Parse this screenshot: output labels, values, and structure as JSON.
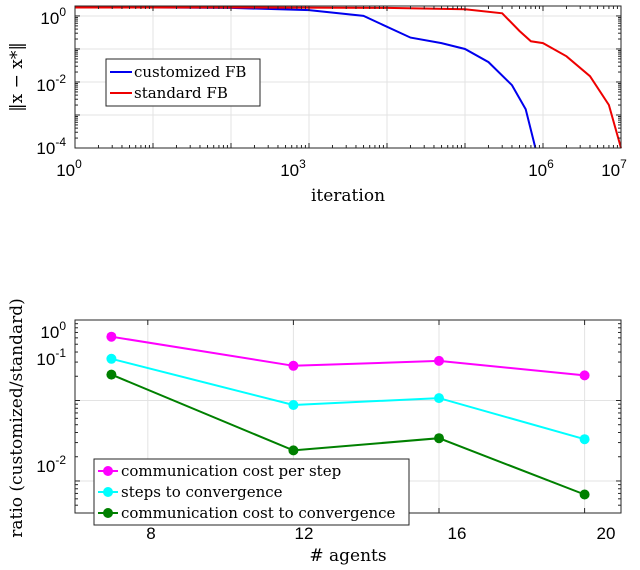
{
  "chart_data": [
    {
      "type": "line",
      "xscale": "log",
      "yscale": "log",
      "xlim": [
        1,
        10000000
      ],
      "ylim": [
        0.0001,
        2
      ],
      "x_ticks": [
        {
          "base": "10",
          "exp": "0"
        },
        {
          "base": "10",
          "exp": "3"
        },
        {
          "base": "10",
          "exp": "6"
        },
        {
          "base": "10",
          "exp": "7"
        }
      ],
      "y_ticks": [
        {
          "base": "10",
          "exp": "0"
        },
        {
          "base": "10",
          "exp": "-2"
        },
        {
          "base": "10",
          "exp": "-4"
        }
      ],
      "xlabel": "iteration",
      "ylabel": "‖x − x*‖",
      "grid": true,
      "legend_position": "middle-left",
      "series": [
        {
          "name": "customized FB",
          "color": "#0000ee",
          "x": [
            1,
            10,
            100,
            1000,
            5000,
            20000,
            50000,
            100000,
            200000,
            400000,
            600000,
            800000
          ],
          "y": [
            1.8,
            1.8,
            1.75,
            1.5,
            1.0,
            0.22,
            0.15,
            0.1,
            0.04,
            0.008,
            0.0015,
            0.0001
          ]
        },
        {
          "name": "standard FB",
          "color": "#ee0000",
          "x": [
            1,
            100,
            10000,
            100000,
            300000,
            500000,
            700000,
            1000000,
            2000000,
            4000000,
            7000000,
            10000000
          ],
          "y": [
            1.8,
            1.8,
            1.75,
            1.6,
            1.2,
            0.35,
            0.17,
            0.15,
            0.06,
            0.015,
            0.002,
            0.0001
          ]
        }
      ]
    },
    {
      "type": "line",
      "yscale": "log",
      "xlim": [
        6,
        21
      ],
      "ylim": [
        0.004,
        1
      ],
      "x_ticks": [
        "8",
        "12",
        "16",
        "20"
      ],
      "y_ticks": [
        {
          "base": "10",
          "exp": "0"
        },
        {
          "base": "10",
          "exp": "-1"
        },
        {
          "base": "10",
          "exp": "-2"
        }
      ],
      "xlabel": "# agents",
      "ylabel": "ratio (customized/standard)",
      "grid": true,
      "legend_position": "bottom-left",
      "categories": [
        7,
        12,
        16,
        20
      ],
      "series": [
        {
          "name": "communication cost per step",
          "color": "#ff00ff",
          "values": [
            0.62,
            0.27,
            0.31,
            0.205
          ]
        },
        {
          "name": "steps to convergence",
          "color": "#00ffff",
          "values": [
            0.33,
            0.088,
            0.107,
            0.033
          ]
        },
        {
          "name": "communication cost to convergence",
          "color": "#008000",
          "values": [
            0.21,
            0.024,
            0.034,
            0.0068
          ]
        }
      ]
    }
  ]
}
